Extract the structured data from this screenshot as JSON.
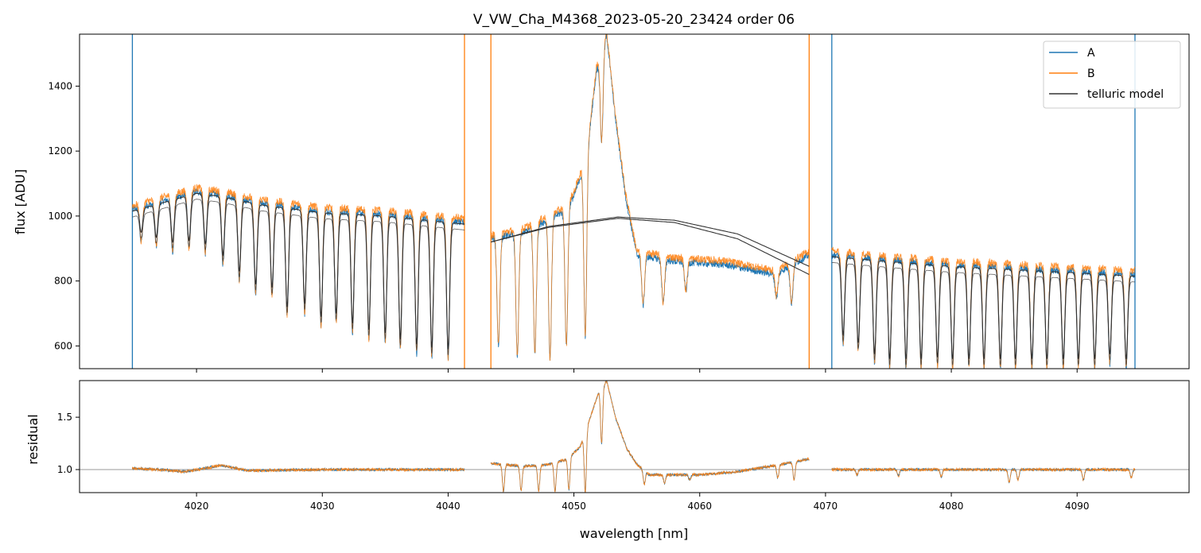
{
  "chart_data": [
    {
      "type": "line",
      "title": "V_VW_Cha_M4368_2023-05-20_23424  order 06",
      "xlabel": "",
      "ylabel": "flux [ADU]",
      "xlim": [
        4010.7,
        4098.9
      ],
      "ylim": [
        530,
        1560
      ],
      "yticks": [
        600,
        800,
        1000,
        1200,
        1400
      ],
      "xticks": [
        4020,
        4030,
        4040,
        4050,
        4060,
        4070,
        4080,
        4090
      ],
      "legend": {
        "placement": "top-right",
        "entries": [
          "A",
          "B",
          "telluric model"
        ]
      },
      "colors": {
        "A": "#1f77b4",
        "B": "#ff7f0e",
        "telluric model": "#333333"
      },
      "segments": [
        {
          "x_range": [
            4014.9,
            4041.3
          ],
          "continuum": [
            [
              4014.9,
              1020
            ],
            [
              4020,
              1075
            ],
            [
              4022,
              1065
            ],
            [
              4025,
              1040
            ],
            [
              4030,
              1015
            ],
            [
              4035,
              1005
            ],
            [
              4041.3,
              980
            ]
          ],
          "absorption_lines": [
            [
              4015.6,
              920
            ],
            [
              4016.8,
              905
            ],
            [
              4018.1,
              890
            ],
            [
              4019.4,
              895
            ],
            [
              4020.7,
              885
            ],
            [
              4022.1,
              850
            ],
            [
              4023.4,
              800
            ],
            [
              4024.7,
              760
            ],
            [
              4026,
              750
            ],
            [
              4027.2,
              690
            ],
            [
              4028.6,
              700
            ],
            [
              4029.9,
              660
            ],
            [
              4031.1,
              670
            ],
            [
              4032.4,
              640
            ],
            [
              4033.7,
              620
            ],
            [
              4035,
              610
            ],
            [
              4036.2,
              590
            ],
            [
              4037.5,
              575
            ],
            [
              4038.7,
              565
            ],
            [
              4040,
              560
            ]
          ]
        },
        {
          "x_range": [
            4043.4,
            4068.7
          ],
          "continuum": [
            [
              4043.4,
              930
            ],
            [
              4046,
              950
            ],
            [
              4048,
              990
            ],
            [
              4049,
              1010
            ],
            [
              4050,
              1060
            ],
            [
              4051,
              1180
            ],
            [
              4051.8,
              1450
            ],
            [
              4052.6,
              1560
            ],
            [
              4053.3,
              1300
            ],
            [
              4054.1,
              1060
            ],
            [
              4055,
              880
            ],
            [
              4058,
              860
            ],
            [
              4062,
              850
            ],
            [
              4066,
              820
            ],
            [
              4068.7,
              880
            ]
          ],
          "absorption_lines": [
            [
              4044,
              600
            ],
            [
              4045.5,
              570
            ],
            [
              4046.9,
              580
            ],
            [
              4048.1,
              560
            ],
            [
              4049.4,
              600
            ],
            [
              4050.9,
              630
            ],
            [
              4052.2,
              1230
            ],
            [
              4055.5,
              725
            ],
            [
              4057.1,
              730
            ],
            [
              4058.9,
              770
            ],
            [
              4066.1,
              750
            ],
            [
              4067.3,
              730
            ]
          ],
          "telluric_model_arcs": [
            [
              [
                4043.4,
                920
              ],
              [
                4048,
                965
              ],
              [
                4053.5,
                993
              ],
              [
                4058,
                980
              ],
              [
                4063,
                930
              ],
              [
                4068.7,
                820
              ]
            ],
            [
              [
                4043.4,
                920
              ],
              [
                4048,
                968
              ],
              [
                4053.5,
                997
              ],
              [
                4058,
                987
              ],
              [
                4063,
                945
              ],
              [
                4068.7,
                845
              ]
            ]
          ]
        },
        {
          "x_range": [
            4070.5,
            4094.6
          ],
          "continuum": [
            [
              4070.5,
              880
            ],
            [
              4075,
              865
            ],
            [
              4080,
              850
            ],
            [
              4085,
              840
            ],
            [
              4090,
              830
            ],
            [
              4094.6,
              820
            ]
          ],
          "absorption_lines": [
            [
              4071.4,
              605
            ],
            [
              4072.6,
              580
            ],
            [
              4073.9,
              545
            ],
            [
              4075.1,
              530
            ],
            [
              4076.4,
              530
            ],
            [
              4077.6,
              530
            ],
            [
              4078.9,
              535
            ],
            [
              4080.1,
              530
            ],
            [
              4081.4,
              530
            ],
            [
              4082.6,
              530
            ],
            [
              4083.9,
              530
            ],
            [
              4085.1,
              530
            ],
            [
              4086.4,
              530
            ],
            [
              4087.6,
              530
            ],
            [
              4088.9,
              530
            ],
            [
              4090.1,
              530
            ],
            [
              4091.4,
              530
            ],
            [
              4092.6,
              545
            ],
            [
              4093.9,
              530
            ]
          ]
        }
      ],
      "spikes": [
        [
          4014.9,
          "A"
        ],
        [
          4041.3,
          "B"
        ],
        [
          4043.4,
          "B"
        ],
        [
          4068.7,
          "B"
        ],
        [
          4070.5,
          "A"
        ],
        [
          4094.6,
          "A"
        ]
      ]
    },
    {
      "type": "line",
      "title": "",
      "xlabel": "wavelength [nm]",
      "ylabel": "residual",
      "xlim": [
        4010.7,
        4098.9
      ],
      "ylim": [
        0.78,
        1.85
      ],
      "yticks": [
        1.0,
        1.5
      ],
      "ytick_labels": [
        "1.0",
        "1.5"
      ],
      "xticks": [
        4020,
        4030,
        4040,
        4050,
        4060,
        4070,
        4080,
        4090
      ],
      "reference_line": 1.0,
      "segments": [
        {
          "x_range": [
            4014.9,
            4041.3
          ],
          "profile": [
            [
              4014.9,
              1.01
            ],
            [
              4017,
              1.0
            ],
            [
              4019,
              0.98
            ],
            [
              4021,
              1.02
            ],
            [
              4022,
              1.04
            ],
            [
              4024,
              0.99
            ],
            [
              4030,
              1.0
            ],
            [
              4041.3,
              1.0
            ]
          ],
          "dips": []
        },
        {
          "x_range": [
            4043.4,
            4068.7
          ],
          "profile": [
            [
              4043.4,
              1.06
            ],
            [
              4046,
              1.03
            ],
            [
              4048,
              1.05
            ],
            [
              4049.5,
              1.1
            ],
            [
              4050.5,
              1.22
            ],
            [
              4051.3,
              1.5
            ],
            [
              4052,
              1.75
            ],
            [
              4052.6,
              1.85
            ],
            [
              4053.3,
              1.5
            ],
            [
              4054.2,
              1.2
            ],
            [
              4055,
              1.05
            ],
            [
              4056,
              0.95
            ],
            [
              4060,
              0.95
            ],
            [
              4063,
              0.98
            ],
            [
              4066,
              1.04
            ],
            [
              4068.7,
              1.1
            ]
          ],
          "dips": [
            [
              4044.4,
              0.79
            ],
            [
              4045.8,
              0.8
            ],
            [
              4047.2,
              0.8
            ],
            [
              4048.5,
              0.79
            ],
            [
              4049.6,
              0.81
            ],
            [
              4050.9,
              0.78
            ],
            [
              4052.2,
              1.25
            ],
            [
              4055.6,
              0.86
            ],
            [
              4057.2,
              0.87
            ],
            [
              4059.2,
              0.9
            ],
            [
              4066.2,
              0.92
            ],
            [
              4067.5,
              0.9
            ]
          ]
        },
        {
          "x_range": [
            4070.5,
            4094.6
          ],
          "profile": [
            [
              4070.5,
              1.0
            ],
            [
              4080,
              1.0
            ],
            [
              4094.6,
              1.0
            ]
          ],
          "dips": [
            [
              4072.5,
              0.95
            ],
            [
              4075.8,
              0.94
            ],
            [
              4079.2,
              0.93
            ],
            [
              4084.6,
              0.88
            ],
            [
              4085.3,
              0.9
            ],
            [
              4090.5,
              0.9
            ],
            [
              4094.3,
              0.92
            ]
          ]
        }
      ]
    }
  ]
}
